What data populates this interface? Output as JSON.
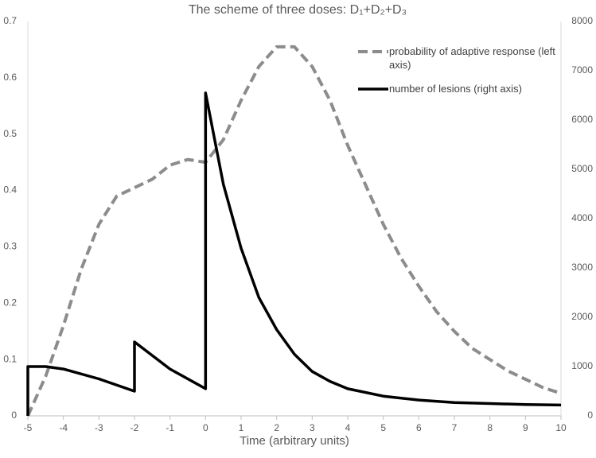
{
  "chart_data": {
    "type": "line",
    "title": "The scheme of three doses: D₁+D₂+D₃",
    "x_label": "Time (arbitrary units)",
    "xlim": [
      -5,
      10
    ],
    "xticks": [
      -5,
      -4,
      -3,
      -2,
      -1,
      0,
      1,
      2,
      3,
      4,
      5,
      6,
      7,
      8,
      9,
      10
    ],
    "ylim": [
      0,
      0.7
    ],
    "yticks": [
      0,
      0.1,
      0.2,
      0.3,
      0.4,
      0.5,
      0.6,
      0.7
    ],
    "y2lim": [
      0,
      8000
    ],
    "y2ticks": [
      0,
      1000,
      2000,
      3000,
      4000,
      5000,
      6000,
      7000,
      8000
    ],
    "grid": false,
    "legend": "upper right",
    "series": [
      {
        "name": "probability of adaptive response (left axis)",
        "color": "#8c8c8c",
        "dash": true,
        "x": [
          -5,
          -4.5,
          -4,
          -3.5,
          -3,
          -2.5,
          -2,
          -1.5,
          -1,
          -0.5,
          0,
          0.5,
          1,
          1.5,
          2,
          2.5,
          3,
          3.5,
          4,
          4.5,
          5,
          5.5,
          6,
          6.5,
          7,
          7.5,
          8,
          8.5,
          9,
          9.5,
          10
        ],
        "values": [
          0,
          0.07,
          0.16,
          0.26,
          0.34,
          0.39,
          0.405,
          0.42,
          0.445,
          0.455,
          0.45,
          0.49,
          0.56,
          0.62,
          0.655,
          0.655,
          0.62,
          0.56,
          0.48,
          0.41,
          0.34,
          0.28,
          0.23,
          0.185,
          0.15,
          0.12,
          0.1,
          0.08,
          0.065,
          0.05,
          0.04
        ]
      },
      {
        "name": "number of lesions (right axis)",
        "color": "#000000",
        "dash": false,
        "axis": "y2",
        "x": [
          -5,
          -5,
          -4.5,
          -4,
          -3,
          -2,
          -2,
          -1,
          0,
          0,
          0.5,
          1,
          1.5,
          2,
          2.5,
          3,
          3.5,
          4,
          5,
          6,
          7,
          8,
          9,
          10
        ],
        "values": [
          0,
          1000,
          1000,
          950,
          750,
          500,
          1500,
          950,
          550,
          6550,
          4700,
          3400,
          2400,
          1750,
          1250,
          900,
          700,
          550,
          400,
          320,
          270,
          250,
          230,
          220
        ]
      }
    ]
  }
}
